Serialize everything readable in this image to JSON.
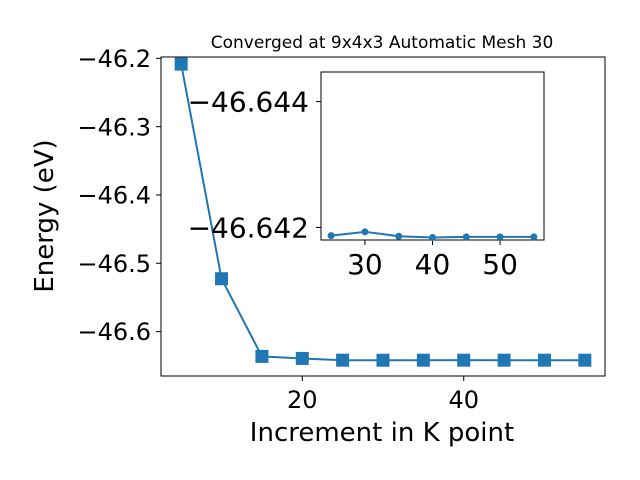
{
  "chart_data": [
    {
      "type": "line",
      "title": "Converged at 9x4x3 Automatic Mesh 30",
      "xlabel": "Increment in K point",
      "ylabel": "Energy (eV)",
      "xlim": [
        2.5,
        57.5
      ],
      "ylim": [
        -46.665,
        -46.198
      ],
      "xticks": [
        20,
        40
      ],
      "yticks": [
        -46.6,
        -46.5,
        -46.4,
        -46.3,
        -46.2
      ],
      "xtick_labels": [
        "20",
        "40"
      ],
      "ytick_labels": [
        "−46.6",
        "−46.5",
        "−46.4",
        "−46.3",
        "−46.2"
      ],
      "marker": "square",
      "color": "#1f77b4",
      "grid": false,
      "series": [
        {
          "x": [
            5,
            10,
            15,
            20,
            25,
            30,
            35,
            40,
            45,
            50,
            55
          ],
          "y": [
            -46.2084,
            -46.5226,
            -46.6363,
            -46.6393,
            -46.64187,
            -46.64193,
            -46.64186,
            -46.64184,
            -46.64185,
            -46.64185,
            -46.64185
          ]
        }
      ]
    },
    {
      "type": "line",
      "inset": true,
      "xlim": [
        23.5,
        56.5
      ],
      "ylim": [
        -46.6418,
        -46.64447
      ],
      "xticks": [
        30,
        40,
        50
      ],
      "yticks": [
        -46.644,
        -46.642
      ],
      "xtick_labels": [
        "30",
        "40",
        "50"
      ],
      "ytick_labels": [
        "−46.644",
        "−46.642"
      ],
      "marker": "circle",
      "color": "#1f77b4",
      "grid": false,
      "series": [
        {
          "x": [
            25,
            30,
            35,
            40,
            45,
            50,
            55
          ],
          "y": [
            -46.64187,
            -46.64193,
            -46.64186,
            -46.64184,
            -46.64185,
            -46.64185,
            -46.64185
          ]
        }
      ]
    }
  ]
}
